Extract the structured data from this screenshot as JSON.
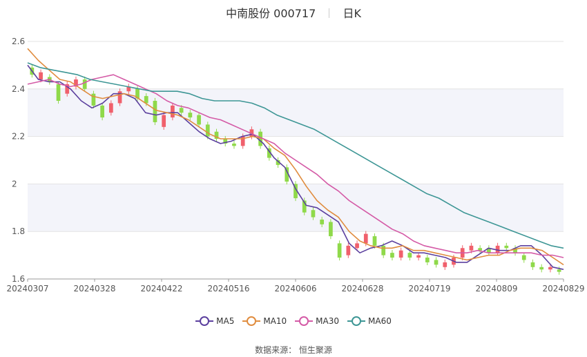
{
  "header": {
    "stock_name": "中南股份",
    "stock_code": "000717",
    "period": "日K"
  },
  "footer": {
    "source": "数据来源：  恒生聚源"
  },
  "chart_data": {
    "type": "candlestick",
    "ylim": [
      1.6,
      2.6
    ],
    "yticks": [
      1.6,
      1.8,
      2,
      2.2,
      2.4,
      2.6
    ],
    "xtick_labels": [
      "20240307",
      "20240328",
      "20240422",
      "20240516",
      "20240606",
      "20240628",
      "20240719",
      "20240809",
      "20240829"
    ],
    "grid": "horizontal bands",
    "legend_position": "bottom",
    "colors": {
      "up": "#f0606c",
      "down": "#8fd94a",
      "band": "#f3f4fa"
    },
    "series": [
      {
        "name": "MA5",
        "color": "#5b3f9e",
        "values": [
          2.5,
          2.44,
          2.43,
          2.43,
          2.4,
          2.35,
          2.32,
          2.34,
          2.38,
          2.38,
          2.36,
          2.3,
          2.29,
          2.3,
          2.3,
          2.26,
          2.22,
          2.19,
          2.17,
          2.18,
          2.2,
          2.21,
          2.17,
          2.11,
          2.07,
          1.98,
          1.91,
          1.9,
          1.87,
          1.84,
          1.75,
          1.71,
          1.73,
          1.74,
          1.76,
          1.74,
          1.71,
          1.71,
          1.7,
          1.69,
          1.67,
          1.67,
          1.7,
          1.73,
          1.72,
          1.72,
          1.74,
          1.74,
          1.7,
          1.65,
          1.64
        ]
      },
      {
        "name": "MA10",
        "color": "#e08c3e",
        "values": [
          2.57,
          2.52,
          2.48,
          2.44,
          2.43,
          2.4,
          2.37,
          2.36,
          2.37,
          2.38,
          2.37,
          2.34,
          2.31,
          2.3,
          2.29,
          2.27,
          2.24,
          2.21,
          2.19,
          2.19,
          2.19,
          2.2,
          2.19,
          2.15,
          2.12,
          2.06,
          1.99,
          1.93,
          1.89,
          1.86,
          1.8,
          1.76,
          1.74,
          1.73,
          1.73,
          1.74,
          1.72,
          1.72,
          1.71,
          1.7,
          1.69,
          1.68,
          1.69,
          1.7,
          1.7,
          1.72,
          1.73,
          1.73,
          1.72,
          1.69,
          1.66
        ]
      },
      {
        "name": "MA30",
        "color": "#d45aa6",
        "values": [
          2.42,
          2.43,
          2.44,
          2.42,
          2.41,
          2.42,
          2.44,
          2.45,
          2.46,
          2.44,
          2.42,
          2.4,
          2.38,
          2.35,
          2.33,
          2.32,
          2.3,
          2.28,
          2.27,
          2.25,
          2.23,
          2.21,
          2.19,
          2.17,
          2.13,
          2.1,
          2.07,
          2.04,
          2.0,
          1.97,
          1.93,
          1.9,
          1.87,
          1.84,
          1.81,
          1.79,
          1.76,
          1.74,
          1.73,
          1.72,
          1.71,
          1.71,
          1.72,
          1.71,
          1.71,
          1.71,
          1.71,
          1.71,
          1.7,
          1.7,
          1.69
        ]
      },
      {
        "name": "MA60",
        "color": "#3d9695",
        "values": [
          2.51,
          2.49,
          2.48,
          2.47,
          2.46,
          2.44,
          2.43,
          2.42,
          2.41,
          2.4,
          2.39,
          2.39,
          2.39,
          2.38,
          2.36,
          2.35,
          2.35,
          2.35,
          2.34,
          2.32,
          2.29,
          2.27,
          2.25,
          2.23,
          2.2,
          2.17,
          2.14,
          2.11,
          2.08,
          2.05,
          2.02,
          1.99,
          1.96,
          1.94,
          1.91,
          1.88,
          1.86,
          1.84,
          1.82,
          1.8,
          1.78,
          1.76,
          1.74,
          1.73
        ]
      }
    ],
    "candles": [
      [
        2.49,
        2.46
      ],
      [
        2.44,
        2.47
      ],
      [
        2.45,
        2.43
      ],
      [
        2.42,
        2.35
      ],
      [
        2.38,
        2.42
      ],
      [
        2.41,
        2.44
      ],
      [
        2.44,
        2.4
      ],
      [
        2.38,
        2.33
      ],
      [
        2.33,
        2.28
      ],
      [
        2.3,
        2.34
      ],
      [
        2.34,
        2.39
      ],
      [
        2.39,
        2.41
      ],
      [
        2.4,
        2.36
      ],
      [
        2.37,
        2.34
      ],
      [
        2.35,
        2.26
      ],
      [
        2.24,
        2.29
      ],
      [
        2.28,
        2.33
      ],
      [
        2.32,
        2.3
      ],
      [
        2.3,
        2.28
      ],
      [
        2.29,
        2.25
      ],
      [
        2.25,
        2.2
      ],
      [
        2.22,
        2.19
      ],
      [
        2.19,
        2.17
      ],
      [
        2.17,
        2.16
      ],
      [
        2.16,
        2.2
      ],
      [
        2.2,
        2.23
      ],
      [
        2.22,
        2.16
      ],
      [
        2.15,
        2.11
      ],
      [
        2.1,
        2.08
      ],
      [
        2.07,
        2.01
      ],
      [
        2.0,
        1.94
      ],
      [
        1.93,
        1.88
      ],
      [
        1.89,
        1.86
      ],
      [
        1.85,
        1.83
      ],
      [
        1.84,
        1.78
      ],
      [
        1.75,
        1.69
      ],
      [
        1.7,
        1.74
      ],
      [
        1.73,
        1.75
      ],
      [
        1.75,
        1.79
      ],
      [
        1.78,
        1.74
      ],
      [
        1.74,
        1.7
      ],
      [
        1.71,
        1.69
      ],
      [
        1.69,
        1.72
      ],
      [
        1.71,
        1.69
      ],
      [
        1.69,
        1.7
      ],
      [
        1.69,
        1.67
      ],
      [
        1.68,
        1.66
      ],
      [
        1.65,
        1.67
      ],
      [
        1.66,
        1.69
      ],
      [
        1.69,
        1.73
      ],
      [
        1.72,
        1.74
      ],
      [
        1.73,
        1.72
      ],
      [
        1.73,
        1.71
      ],
      [
        1.71,
        1.74
      ],
      [
        1.74,
        1.73
      ],
      [
        1.73,
        1.71
      ],
      [
        1.7,
        1.68
      ],
      [
        1.67,
        1.65
      ],
      [
        1.65,
        1.64
      ],
      [
        1.64,
        1.65
      ],
      [
        1.64,
        1.63
      ]
    ]
  }
}
